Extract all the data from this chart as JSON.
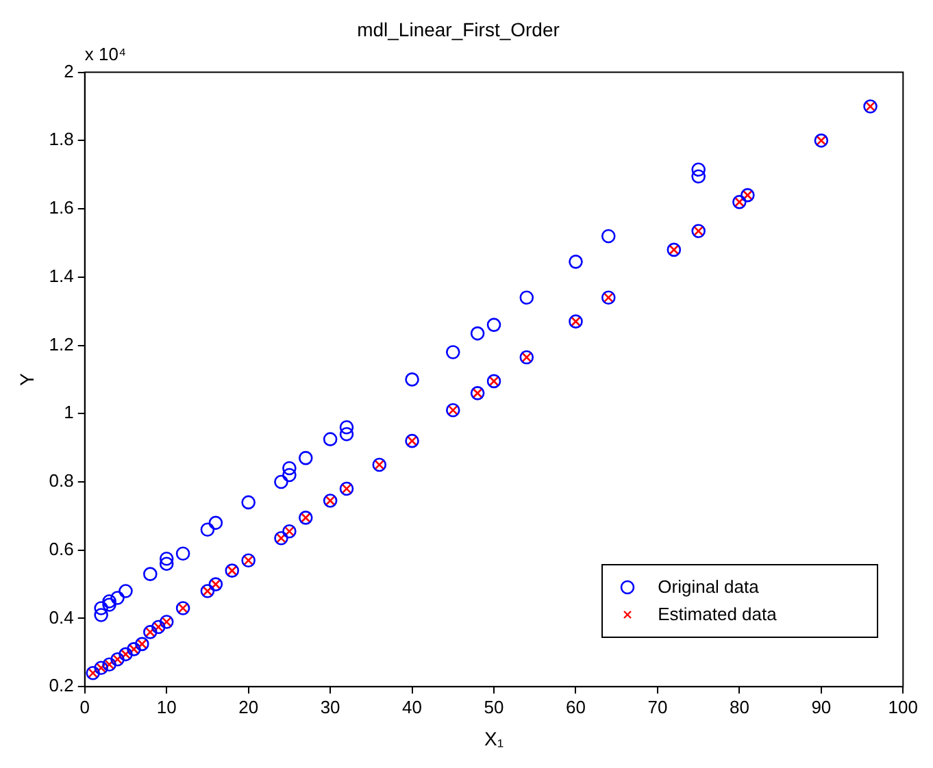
{
  "chart_data": {
    "type": "scatter",
    "title": "mdl_Linear_First_Order",
    "xlabel": "X₁",
    "ylabel": "Y",
    "annotations": [
      "x 10⁴"
    ],
    "xlim": [
      0,
      100
    ],
    "xticks": [
      0,
      10,
      20,
      30,
      40,
      50,
      60,
      70,
      80,
      90,
      100
    ],
    "ylim": [
      0.2,
      2
    ],
    "yticks": [
      0.2,
      0.4,
      0.6,
      0.8,
      1,
      1.2,
      1.4,
      1.6,
      1.8,
      2
    ],
    "grid": false,
    "legend": "bottom right",
    "series": [
      {
        "name": "Original data",
        "color": "#0000ff",
        "marker": "circle",
        "x": [
          2,
          2,
          3,
          3,
          4,
          5,
          8,
          10,
          10,
          12,
          15,
          16,
          20,
          24,
          25,
          25,
          27,
          30,
          32,
          32,
          40,
          45,
          48,
          50,
          54,
          60,
          64,
          75,
          75,
          1,
          2,
          3,
          4,
          5,
          6,
          7,
          8,
          9,
          10,
          12,
          15,
          16,
          18,
          20,
          24,
          25,
          27,
          30,
          32,
          36,
          40,
          45,
          48,
          50,
          54,
          60,
          64,
          72,
          75,
          80,
          81,
          90,
          96
        ],
        "values": [
          0.41,
          0.43,
          0.44,
          0.45,
          0.46,
          0.48,
          0.53,
          0.56,
          0.575,
          0.59,
          0.66,
          0.68,
          0.74,
          0.8,
          0.82,
          0.84,
          0.87,
          0.925,
          0.94,
          0.96,
          1.1,
          1.18,
          1.235,
          1.26,
          1.34,
          1.445,
          1.52,
          1.695,
          1.715,
          0.24,
          0.255,
          0.265,
          0.28,
          0.295,
          0.31,
          0.325,
          0.36,
          0.375,
          0.39,
          0.43,
          0.48,
          0.5,
          0.54,
          0.57,
          0.635,
          0.655,
          0.695,
          0.745,
          0.78,
          0.85,
          0.92,
          1.01,
          1.06,
          1.095,
          1.165,
          1.27,
          1.34,
          1.48,
          1.535,
          1.62,
          1.64,
          1.8,
          1.9
        ]
      },
      {
        "name": "Estimated data",
        "color": "#ff0000",
        "marker": "cross",
        "x": [
          1,
          2,
          3,
          4,
          5,
          6,
          7,
          8,
          9,
          10,
          12,
          15,
          16,
          18,
          20,
          24,
          25,
          27,
          30,
          32,
          36,
          40,
          45,
          48,
          50,
          54,
          60,
          64,
          72,
          75,
          80,
          81,
          90,
          96
        ],
        "values": [
          0.24,
          0.255,
          0.265,
          0.28,
          0.295,
          0.31,
          0.325,
          0.36,
          0.375,
          0.39,
          0.43,
          0.48,
          0.5,
          0.54,
          0.57,
          0.635,
          0.655,
          0.695,
          0.745,
          0.78,
          0.85,
          0.92,
          1.01,
          1.06,
          1.095,
          1.165,
          1.27,
          1.34,
          1.48,
          1.535,
          1.62,
          1.64,
          1.8,
          1.9
        ]
      }
    ]
  }
}
